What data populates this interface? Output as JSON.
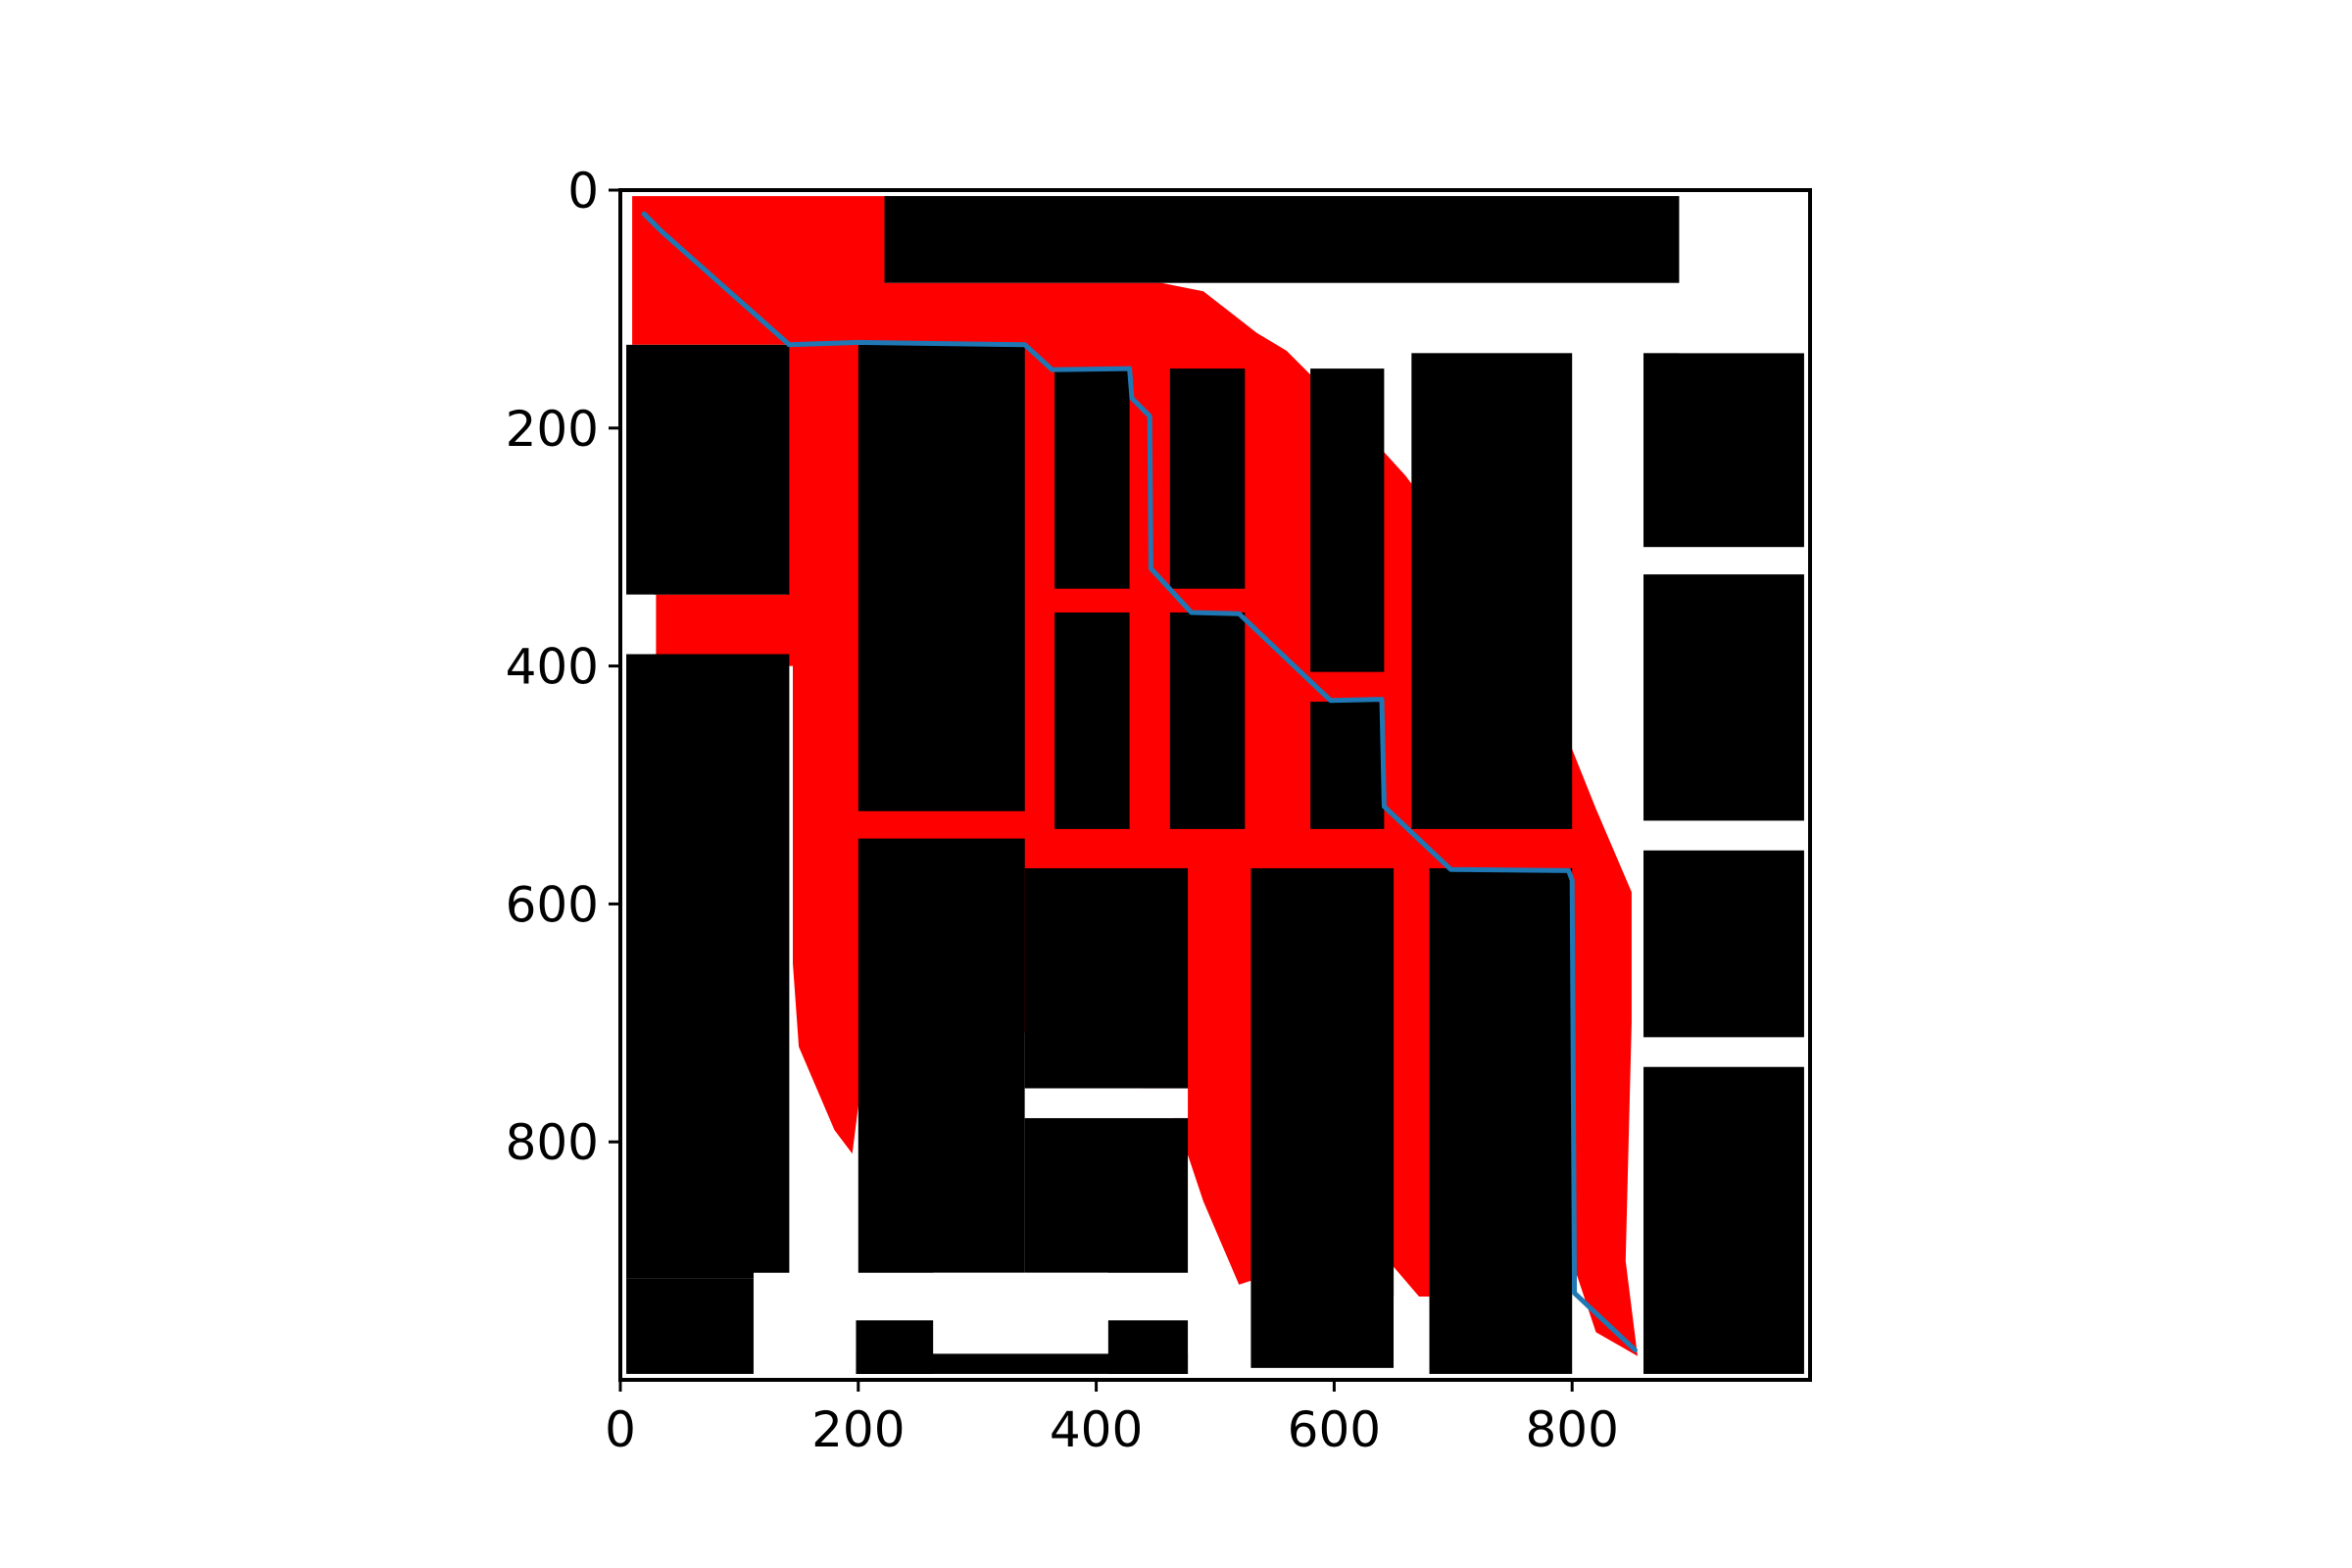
{
  "chart_data": {
    "type": "heatmap",
    "description_kind": "occupancy grid map with explored region and planned path",
    "title": "",
    "xlabel": "",
    "ylabel": "",
    "xlim": [
      0,
      1000
    ],
    "ylim": [
      1000,
      0
    ],
    "x_ticks": [
      0,
      200,
      400,
      600,
      800
    ],
    "y_ticks": [
      0,
      200,
      400,
      600,
      800
    ],
    "x_tick_labels": [
      "0",
      "200",
      "400",
      "600",
      "800"
    ],
    "y_tick_labels": [
      "0",
      "200",
      "400",
      "600",
      "800"
    ],
    "colors": {
      "free_space": "#ffffff",
      "obstacle": "#000000",
      "explored": "#ff0000",
      "path": "#1f77b4"
    },
    "explored_region": [
      [
        10,
        5
      ],
      [
        222,
        5
      ],
      [
        222,
        78
      ],
      [
        455,
        78
      ],
      [
        490,
        85
      ],
      [
        535,
        120
      ],
      [
        560,
        135
      ],
      [
        610,
        185
      ],
      [
        660,
        240
      ],
      [
        720,
        320
      ],
      [
        780,
        420
      ],
      [
        820,
        520
      ],
      [
        850,
        590
      ],
      [
        850,
        700
      ],
      [
        845,
        900
      ],
      [
        855,
        980
      ],
      [
        820,
        960
      ],
      [
        800,
        900
      ],
      [
        770,
        880
      ],
      [
        700,
        920
      ],
      [
        680,
        940
      ],
      [
        650,
        905
      ],
      [
        630,
        860
      ],
      [
        580,
        900
      ],
      [
        520,
        920
      ],
      [
        490,
        850
      ],
      [
        470,
        790
      ],
      [
        460,
        770
      ],
      [
        445,
        760
      ],
      [
        420,
        740
      ],
      [
        380,
        740
      ],
      [
        330,
        700
      ],
      [
        300,
        690
      ],
      [
        230,
        700
      ],
      [
        200,
        770
      ],
      [
        195,
        810
      ],
      [
        180,
        790
      ],
      [
        150,
        720
      ],
      [
        145,
        650
      ],
      [
        145,
        400
      ],
      [
        30,
        400
      ],
      [
        30,
        340
      ],
      [
        140,
        340
      ],
      [
        140,
        130
      ],
      [
        10,
        130
      ]
    ],
    "obstacles": [
      {
        "x0": 222,
        "y0": 5,
        "x1": 890,
        "y1": 78
      },
      {
        "x0": 5,
        "y0": 130,
        "x1": 142,
        "y1": 340
      },
      {
        "x0": 5,
        "y0": 390,
        "x1": 142,
        "y1": 915
      },
      {
        "x0": 5,
        "y0": 915,
        "x1": 112,
        "y1": 995
      },
      {
        "x0": 200,
        "y0": 130,
        "x1": 340,
        "y1": 522
      },
      {
        "x0": 365,
        "y0": 150,
        "x1": 428,
        "y1": 335
      },
      {
        "x0": 462,
        "y0": 150,
        "x1": 525,
        "y1": 335
      },
      {
        "x0": 365,
        "y0": 355,
        "x1": 428,
        "y1": 537
      },
      {
        "x0": 462,
        "y0": 355,
        "x1": 525,
        "y1": 537
      },
      {
        "x0": 580,
        "y0": 150,
        "x1": 642,
        "y1": 405
      },
      {
        "x0": 580,
        "y0": 430,
        "x1": 642,
        "y1": 537
      },
      {
        "x0": 665,
        "y0": 137,
        "x1": 800,
        "y1": 537
      },
      {
        "x0": 860,
        "y0": 137,
        "x1": 995,
        "y1": 300
      },
      {
        "x0": 860,
        "y0": 323,
        "x1": 995,
        "y1": 530
      },
      {
        "x0": 860,
        "y0": 555,
        "x1": 995,
        "y1": 712
      },
      {
        "x0": 860,
        "y0": 737,
        "x1": 995,
        "y1": 995
      },
      {
        "x0": 200,
        "y0": 545,
        "x1": 340,
        "y1": 910
      },
      {
        "x0": 340,
        "y0": 570,
        "x1": 477,
        "y1": 755
      },
      {
        "x0": 340,
        "y0": 780,
        "x1": 477,
        "y1": 910
      },
      {
        "x0": 530,
        "y0": 570,
        "x1": 650,
        "y1": 990
      },
      {
        "x0": 680,
        "y0": 570,
        "x1": 800,
        "y1": 995
      },
      {
        "x0": 198,
        "y0": 950,
        "x1": 263,
        "y1": 995
      },
      {
        "x0": 410,
        "y0": 950,
        "x1": 477,
        "y1": 995
      },
      {
        "x0": 198,
        "y0": 978,
        "x1": 477,
        "y1": 995
      }
    ],
    "free_cutouts": [
      {
        "x0": 5,
        "y0": 340,
        "x1": 28,
        "y1": 390
      },
      {
        "x0": 112,
        "y0": 910,
        "x1": 198,
        "y1": 995
      },
      {
        "x0": 263,
        "y0": 910,
        "x1": 410,
        "y1": 978
      },
      {
        "x0": 340,
        "y0": 755,
        "x1": 477,
        "y1": 780
      },
      {
        "x0": 650,
        "y0": 930,
        "x1": 680,
        "y1": 995
      },
      {
        "x0": 890,
        "y0": 5,
        "x1": 995,
        "y1": 137
      }
    ],
    "path": {
      "name": "planned path",
      "x": [
        20,
        35,
        142,
        200,
        340,
        363,
        428,
        430,
        445,
        446,
        480,
        520,
        597,
        640,
        642,
        698,
        797,
        800,
        802,
        853
      ],
      "y": [
        20,
        35,
        130,
        128,
        130,
        151,
        150,
        175,
        190,
        318,
        355,
        356,
        429,
        428,
        518,
        571,
        572,
        580,
        927,
        975
      ]
    }
  }
}
